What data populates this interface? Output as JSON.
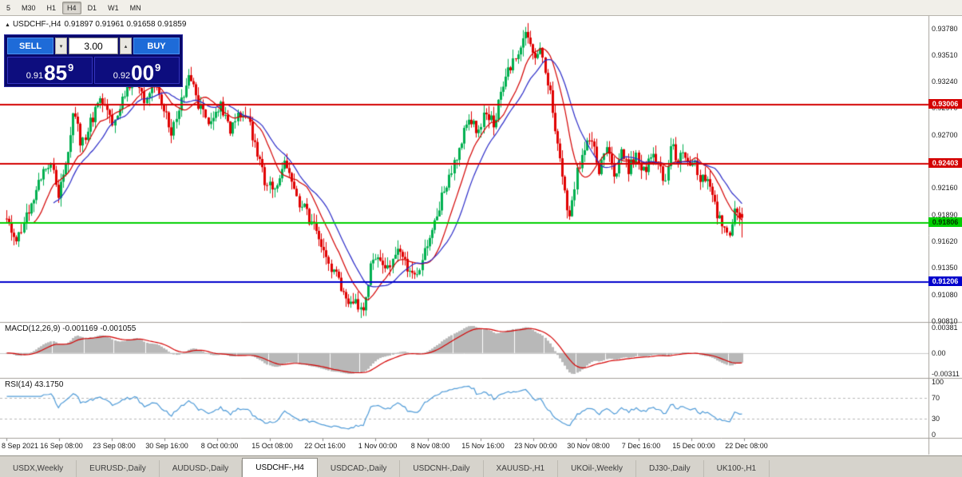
{
  "toolbar": {
    "timeframes": [
      {
        "label": "5",
        "active": false
      },
      {
        "label": "M30",
        "active": false
      },
      {
        "label": "H1",
        "active": false
      },
      {
        "label": "H4",
        "active": true
      },
      {
        "label": "D1",
        "active": false
      },
      {
        "label": "W1",
        "active": false
      },
      {
        "label": "MN",
        "active": false
      }
    ]
  },
  "chart_header": {
    "arrow": "▲",
    "symbol": "USDCHF-,H4",
    "ohlc": "0.91897 0.91961 0.91658 0.91859"
  },
  "trade_panel": {
    "sell_label": "SELL",
    "buy_label": "BUY",
    "volume": "3.00",
    "spin_down": "▾",
    "spin_up": "▴",
    "bid": {
      "prefix": "0.91",
      "big": "85",
      "sup": "9"
    },
    "ask": {
      "prefix": "0.92",
      "big": "00",
      "sup": "9"
    }
  },
  "price_axis": {
    "labels": [
      "0.93780",
      "0.93510",
      "0.93240",
      "0.92970",
      "0.92700",
      "0.92430",
      "0.92160",
      "0.91890",
      "0.91620",
      "0.91350",
      "0.91080",
      "0.90810"
    ]
  },
  "time_axis": {
    "labels": [
      "8 Sep 2021",
      "16 Sep 08:00",
      "23 Sep 08:00",
      "30 Sep 16:00",
      "8 Oct 00:00",
      "15 Oct 08:00",
      "22 Oct 16:00",
      "1 Nov 00:00",
      "8 Nov 08:00",
      "15 Nov 16:00",
      "23 Nov 00:00",
      "30 Nov 08:00",
      "7 Dec 16:00",
      "15 Dec 00:00",
      "22 Dec 08:00"
    ]
  },
  "indicators": {
    "macd": {
      "title": "MACD(12,26,9) -0.001169 -0.001055",
      "value_main": -0.001169,
      "value_signal": -0.001055,
      "fast": 12,
      "slow": 26,
      "signal": 9,
      "axis_labels": [
        "0.00381",
        "0.00",
        "-0.00311"
      ],
      "axis_values": [
        0.00381,
        0,
        -0.00311
      ],
      "y_range": [
        -0.0036,
        0.0045
      ],
      "hist_color": "#b8b8b8",
      "signal_color": "#d40000"
    },
    "rsi": {
      "title": "RSI(14) 43.1750",
      "period": 14,
      "current": 43.175,
      "axis_labels": [
        "100",
        "70",
        "30",
        "0"
      ],
      "axis_values": [
        100,
        70,
        30,
        0
      ],
      "levels": [
        70,
        30
      ],
      "line_color": "#4f9bd8"
    }
  },
  "tabs": {
    "items": [
      {
        "label": "USDX,Weekly",
        "active": false
      },
      {
        "label": "EURUSD-,Daily",
        "active": false
      },
      {
        "label": "AUDUSD-,Daily",
        "active": false
      },
      {
        "label": "USDCHF-,H4",
        "active": true
      },
      {
        "label": "USDCAD-,Daily",
        "active": false
      },
      {
        "label": "USDCNH-,Daily",
        "active": false
      },
      {
        "label": "XAUUSD-,H1",
        "active": false
      },
      {
        "label": "UKOil-,Weekly",
        "active": false
      },
      {
        "label": "DJ30-,Daily",
        "active": false
      },
      {
        "label": "UK100-,H1",
        "active": false
      }
    ]
  },
  "chart_data": {
    "type": "candlestick",
    "symbol": "USDCHF-",
    "timeframe": "H4",
    "title": "USDCHF-,H4",
    "ohlc_current": {
      "open": 0.91897,
      "high": 0.91961,
      "low": 0.91658,
      "close": 0.91859
    },
    "y_range": [
      0.90809,
      0.93906
    ],
    "x_range_labels": [
      "8 Sep 2021",
      "22 Dec 08:00"
    ],
    "num_candles": 300,
    "colors": {
      "up": "#00b050",
      "down": "#e00000"
    },
    "moving_averages": [
      {
        "period": 12,
        "color": "#d40000"
      },
      {
        "period": 20,
        "color": "#2a2ac8"
      }
    ],
    "horizontal_lines": [
      {
        "value": 0.93006,
        "label": "0.93006",
        "color": "#d40000",
        "text": "#ffffff"
      },
      {
        "value": 0.92403,
        "label": "0.92403",
        "color": "#d40000",
        "text": "#ffffff"
      },
      {
        "value": 0.91806,
        "label": "0.91806",
        "color": "#00cf00",
        "text": "#003300"
      },
      {
        "value": 0.91206,
        "label": "0.91206",
        "color": "#0000cc",
        "text": "#ffffff"
      }
    ],
    "price_path_keypoints": [
      [
        0.0,
        0.9185
      ],
      [
        0.012,
        0.9163
      ],
      [
        0.03,
        0.9195
      ],
      [
        0.05,
        0.9232
      ],
      [
        0.06,
        0.9246
      ],
      [
        0.07,
        0.9206
      ],
      [
        0.08,
        0.9242
      ],
      [
        0.092,
        0.9298
      ],
      [
        0.102,
        0.9258
      ],
      [
        0.115,
        0.9285
      ],
      [
        0.13,
        0.9308
      ],
      [
        0.145,
        0.9282
      ],
      [
        0.16,
        0.931
      ],
      [
        0.175,
        0.9336
      ],
      [
        0.188,
        0.9305
      ],
      [
        0.2,
        0.9328
      ],
      [
        0.212,
        0.93
      ],
      [
        0.225,
        0.9272
      ],
      [
        0.238,
        0.9305
      ],
      [
        0.25,
        0.933
      ],
      [
        0.262,
        0.93
      ],
      [
        0.275,
        0.9285
      ],
      [
        0.29,
        0.9302
      ],
      [
        0.305,
        0.9272
      ],
      [
        0.315,
        0.9288
      ],
      [
        0.327,
        0.9295
      ],
      [
        0.34,
        0.9252
      ],
      [
        0.352,
        0.9222
      ],
      [
        0.365,
        0.9215
      ],
      [
        0.38,
        0.9242
      ],
      [
        0.395,
        0.9205
      ],
      [
        0.41,
        0.9188
      ],
      [
        0.425,
        0.9162
      ],
      [
        0.445,
        0.913
      ],
      [
        0.465,
        0.9102
      ],
      [
        0.484,
        0.9092
      ],
      [
        0.495,
        0.9135
      ],
      [
        0.505,
        0.9152
      ],
      [
        0.52,
        0.9132
      ],
      [
        0.532,
        0.915
      ],
      [
        0.545,
        0.9135
      ],
      [
        0.558,
        0.9127
      ],
      [
        0.57,
        0.9152
      ],
      [
        0.582,
        0.918
      ],
      [
        0.595,
        0.9215
      ],
      [
        0.608,
        0.924
      ],
      [
        0.618,
        0.9262
      ],
      [
        0.63,
        0.9288
      ],
      [
        0.64,
        0.927
      ],
      [
        0.652,
        0.9296
      ],
      [
        0.662,
        0.9278
      ],
      [
        0.672,
        0.931
      ],
      [
        0.682,
        0.9332
      ],
      [
        0.695,
        0.9352
      ],
      [
        0.706,
        0.9376
      ],
      [
        0.716,
        0.935
      ],
      [
        0.727,
        0.9362
      ],
      [
        0.737,
        0.932
      ],
      [
        0.747,
        0.9268
      ],
      [
        0.757,
        0.922
      ],
      [
        0.766,
        0.9186
      ],
      [
        0.776,
        0.9232
      ],
      [
        0.786,
        0.9258
      ],
      [
        0.796,
        0.9268
      ],
      [
        0.806,
        0.9235
      ],
      [
        0.816,
        0.9258
      ],
      [
        0.826,
        0.9228
      ],
      [
        0.836,
        0.9252
      ],
      [
        0.846,
        0.9235
      ],
      [
        0.856,
        0.9248
      ],
      [
        0.866,
        0.9232
      ],
      [
        0.876,
        0.925
      ],
      [
        0.886,
        0.9238
      ],
      [
        0.896,
        0.9225
      ],
      [
        0.904,
        0.9262
      ],
      [
        0.912,
        0.924
      ],
      [
        0.92,
        0.9252
      ],
      [
        0.928,
        0.9235
      ],
      [
        0.936,
        0.9245
      ],
      [
        0.944,
        0.9222
      ],
      [
        0.952,
        0.9232
      ],
      [
        0.96,
        0.9205
      ],
      [
        0.97,
        0.9182
      ],
      [
        0.98,
        0.9166
      ],
      [
        0.99,
        0.919
      ],
      [
        1.0,
        0.9186
      ]
    ]
  }
}
